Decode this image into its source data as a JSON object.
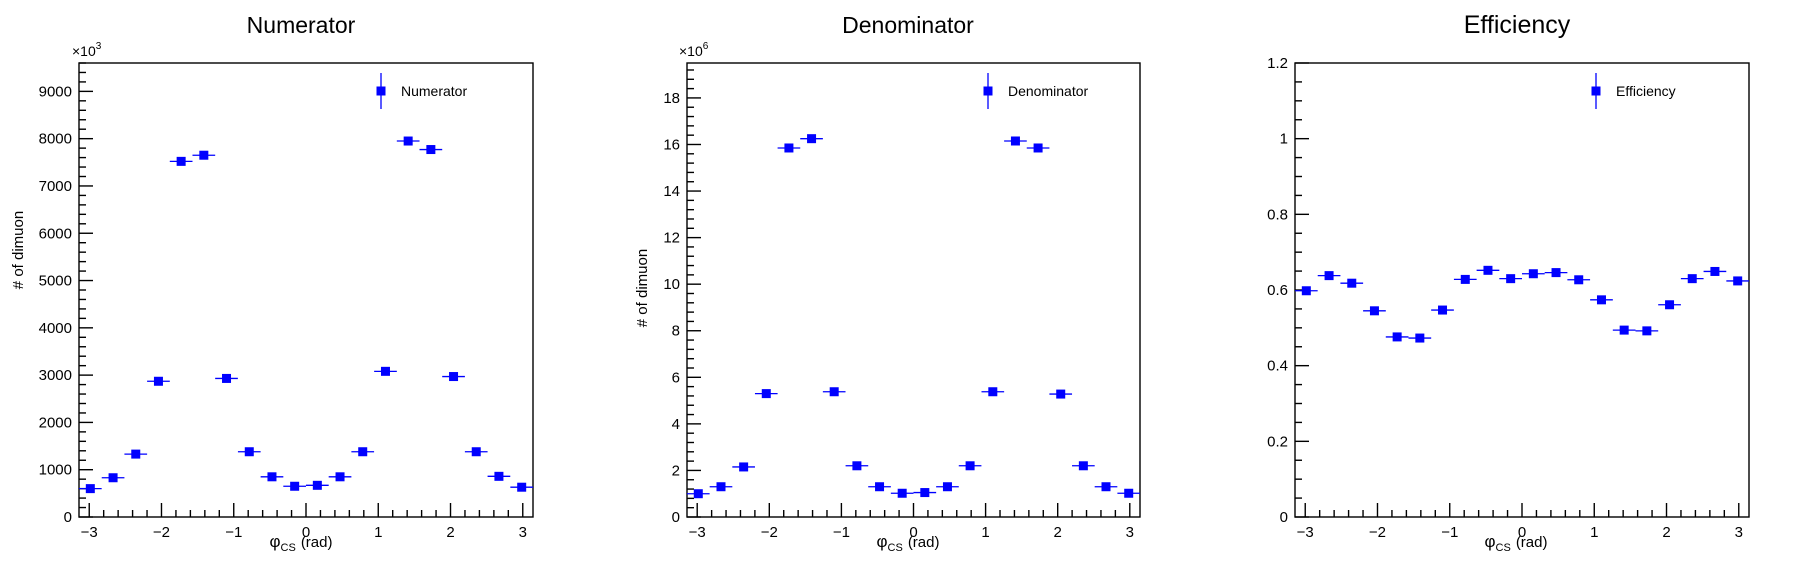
{
  "colors": {
    "marker": "#0000ff",
    "axis": "#000000",
    "background": "#ffffff"
  },
  "chart_data": [
    {
      "type": "scatter",
      "title": "Numerator",
      "xlabel_symbol": "φ",
      "xlabel_sub": "CS",
      "xlabel_unit": "(rad)",
      "ylabel": "# of dimuon",
      "multiplier": "×10",
      "multiplier_exp": "3",
      "legend": "Numerator",
      "legend_position": "top-right",
      "grid": false,
      "xlim": [
        -3.14159,
        3.14159
      ],
      "ylim": [
        0,
        9600
      ],
      "xticks": [
        -3,
        -2,
        -1,
        0,
        1,
        2,
        3
      ],
      "xtick_labels": [
        "−3",
        "−2",
        "−1",
        "0",
        "1",
        "2",
        "3"
      ],
      "yticks": [
        0,
        1000,
        2000,
        3000,
        4000,
        5000,
        6000,
        7000,
        8000,
        9000
      ],
      "ytick_labels": [
        "0",
        "1000",
        "2000",
        "3000",
        "4000",
        "5000",
        "6000",
        "7000",
        "8000",
        "9000"
      ],
      "x": [
        -2.985,
        -2.67,
        -2.356,
        -2.042,
        -1.728,
        -1.414,
        -1.1,
        -0.785,
        -0.471,
        -0.157,
        0.157,
        0.471,
        0.785,
        1.1,
        1.414,
        1.728,
        2.042,
        2.356,
        2.67,
        2.985
      ],
      "values": [
        600,
        830,
        1330,
        2870,
        7520,
        7650,
        2930,
        1380,
        850,
        650,
        670,
        850,
        1380,
        3080,
        7950,
        7770,
        2970,
        1380,
        860,
        630
      ]
    },
    {
      "type": "scatter",
      "title": "Denominator",
      "xlabel_symbol": "φ",
      "xlabel_sub": "CS",
      "xlabel_unit": "(rad)",
      "ylabel": "# of dimuon",
      "multiplier": "×10",
      "multiplier_exp": "6",
      "legend": "Denominator",
      "legend_position": "top-right",
      "grid": false,
      "xlim": [
        -3.14159,
        3.14159
      ],
      "ylim": [
        0,
        19.5
      ],
      "xticks": [
        -3,
        -2,
        -1,
        0,
        1,
        2,
        3
      ],
      "xtick_labels": [
        "−3",
        "−2",
        "−1",
        "0",
        "1",
        "2",
        "3"
      ],
      "yticks": [
        0,
        2,
        4,
        6,
        8,
        10,
        12,
        14,
        16,
        18
      ],
      "ytick_labels": [
        "0",
        "2",
        "4",
        "6",
        "8",
        "10",
        "12",
        "14",
        "16",
        "18"
      ],
      "x": [
        -2.985,
        -2.67,
        -2.356,
        -2.042,
        -1.728,
        -1.414,
        -1.1,
        -0.785,
        -0.471,
        -0.157,
        0.157,
        0.471,
        0.785,
        1.1,
        1.414,
        1.728,
        2.042,
        2.356,
        2.67,
        2.985
      ],
      "values": [
        1.0,
        1.3,
        2.15,
        5.3,
        15.85,
        16.25,
        5.38,
        2.2,
        1.3,
        1.02,
        1.05,
        1.3,
        2.2,
        5.38,
        16.15,
        15.85,
        5.28,
        2.2,
        1.3,
        1.02
      ]
    },
    {
      "type": "scatter",
      "title": "Efficiency",
      "xlabel_symbol": "φ",
      "xlabel_sub": "CS",
      "xlabel_unit": "(rad)",
      "ylabel": "",
      "legend": "Efficiency",
      "legend_position": "top-right",
      "grid": false,
      "xlim": [
        -3.14159,
        3.14159
      ],
      "ylim": [
        0,
        1.2
      ],
      "xticks": [
        -3,
        -2,
        -1,
        0,
        1,
        2,
        3
      ],
      "xtick_labels": [
        "−3",
        "−2",
        "−1",
        "0",
        "1",
        "2",
        "3"
      ],
      "yticks": [
        0,
        0.2,
        0.4,
        0.6,
        0.8,
        1.0,
        1.2
      ],
      "ytick_labels": [
        "0",
        "0.2",
        "0.4",
        "0.6",
        "0.8",
        "1",
        "1.2"
      ],
      "x": [
        -2.985,
        -2.67,
        -2.356,
        -2.042,
        -1.728,
        -1.414,
        -1.1,
        -0.785,
        -0.471,
        -0.157,
        0.157,
        0.471,
        0.785,
        1.1,
        1.414,
        1.728,
        2.042,
        2.356,
        2.67,
        2.985
      ],
      "values": [
        0.598,
        0.638,
        0.618,
        0.545,
        0.476,
        0.473,
        0.547,
        0.628,
        0.652,
        0.63,
        0.643,
        0.646,
        0.627,
        0.574,
        0.494,
        0.492,
        0.561,
        0.63,
        0.649,
        0.624
      ]
    }
  ]
}
